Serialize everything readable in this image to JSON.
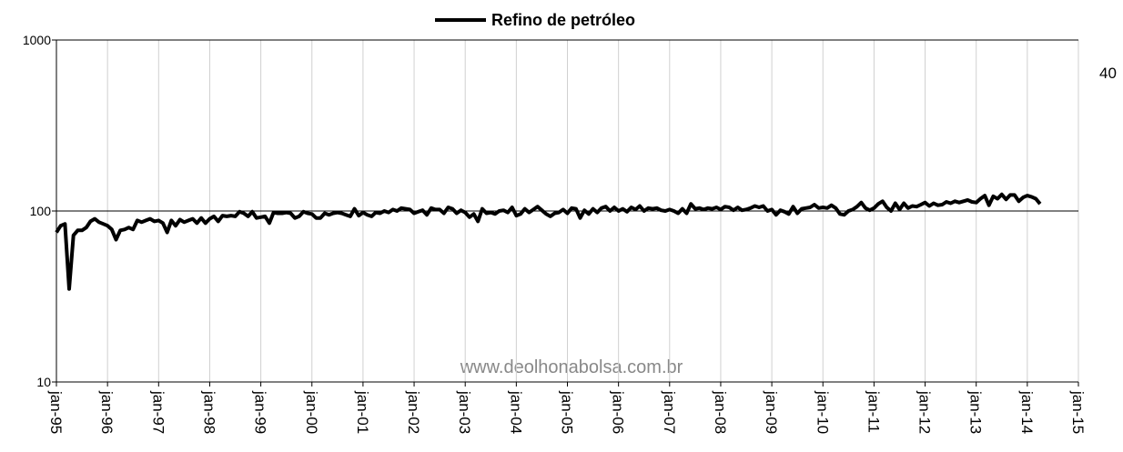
{
  "chart_data": {
    "type": "line",
    "title": "Refino de petróleo",
    "annotations": [
      "40",
      "www.deolhonabolsa.com.br"
    ],
    "log_scale": true,
    "grid": true,
    "xlim": [
      "1995-01",
      "2015-01"
    ],
    "xticks": [
      {
        "value": "1995-01",
        "label": "jan-95"
      },
      {
        "value": "1996-01",
        "label": "jan-96"
      },
      {
        "value": "1997-01",
        "label": "jan-97"
      },
      {
        "value": "1998-01",
        "label": "jan-98"
      },
      {
        "value": "1999-01",
        "label": "jan-99"
      },
      {
        "value": "2000-01",
        "label": "jan-00"
      },
      {
        "value": "2001-01",
        "label": "jan-01"
      },
      {
        "value": "2002-01",
        "label": "jan-02"
      },
      {
        "value": "2003-01",
        "label": "jan-03"
      },
      {
        "value": "2004-01",
        "label": "jan-04"
      },
      {
        "value": "2005-01",
        "label": "jan-05"
      },
      {
        "value": "2006-01",
        "label": "jan-06"
      },
      {
        "value": "2007-01",
        "label": "jan-07"
      },
      {
        "value": "2008-01",
        "label": "jan-08"
      },
      {
        "value": "2009-01",
        "label": "jan-09"
      },
      {
        "value": "2010-01",
        "label": "jan-10"
      },
      {
        "value": "2011-01",
        "label": "jan-11"
      },
      {
        "value": "2012-01",
        "label": "jan-12"
      },
      {
        "value": "2013-01",
        "label": "jan-13"
      },
      {
        "value": "2014-01",
        "label": "jan-14"
      },
      {
        "value": "2015-01",
        "label": "jan-15"
      }
    ],
    "ylim": [
      10,
      1000
    ],
    "yticks": [
      10,
      100,
      1000
    ],
    "x": [
      "1995-01",
      "1995-02",
      "1995-03",
      "1995-04",
      "1995-05",
      "1995-06",
      "1995-07",
      "1995-08",
      "1995-09",
      "1995-10",
      "1995-11",
      "1995-12",
      "1996-01",
      "1996-02",
      "1996-03",
      "1996-04",
      "1996-05",
      "1996-06",
      "1996-07",
      "1996-08",
      "1996-09",
      "1996-10",
      "1996-11",
      "1996-12",
      "1997-01",
      "1997-02",
      "1997-03",
      "1997-04",
      "1997-05",
      "1997-06",
      "1997-07",
      "1997-08",
      "1997-09",
      "1997-10",
      "1997-11",
      "1997-12",
      "1998-01",
      "1998-02",
      "1998-03",
      "1998-04",
      "1998-05",
      "1998-06",
      "1998-07",
      "1998-08",
      "1998-09",
      "1998-10",
      "1998-11",
      "1998-12",
      "1999-01",
      "1999-02",
      "1999-03",
      "1999-04",
      "1999-05",
      "1999-06",
      "1999-07",
      "1999-08",
      "1999-09",
      "1999-10",
      "1999-11",
      "1999-12",
      "2000-01",
      "2000-02",
      "2000-03",
      "2000-04",
      "2000-05",
      "2000-06",
      "2000-07",
      "2000-08",
      "2000-09",
      "2000-10",
      "2000-11",
      "2000-12",
      "2001-01",
      "2001-02",
      "2001-03",
      "2001-04",
      "2001-05",
      "2001-06",
      "2001-07",
      "2001-08",
      "2001-09",
      "2001-10",
      "2001-11",
      "2001-12",
      "2002-01",
      "2002-02",
      "2002-03",
      "2002-04",
      "2002-05",
      "2002-06",
      "2002-07",
      "2002-08",
      "2002-09",
      "2002-10",
      "2002-11",
      "2002-12",
      "2003-01",
      "2003-02",
      "2003-03",
      "2003-04",
      "2003-05",
      "2003-06",
      "2003-07",
      "2003-08",
      "2003-09",
      "2003-10",
      "2003-11",
      "2003-12",
      "2004-01",
      "2004-02",
      "2004-03",
      "2004-04",
      "2004-05",
      "2004-06",
      "2004-07",
      "2004-08",
      "2004-09",
      "2004-10",
      "2004-11",
      "2004-12",
      "2005-01",
      "2005-02",
      "2005-03",
      "2005-04",
      "2005-05",
      "2005-06",
      "2005-07",
      "2005-08",
      "2005-09",
      "2005-10",
      "2005-11",
      "2005-12",
      "2006-01",
      "2006-02",
      "2006-03",
      "2006-04",
      "2006-05",
      "2006-06",
      "2006-07",
      "2006-08",
      "2006-09",
      "2006-10",
      "2006-11",
      "2006-12",
      "2007-01",
      "2007-02",
      "2007-03",
      "2007-04",
      "2007-05",
      "2007-06",
      "2007-07",
      "2007-08",
      "2007-09",
      "2007-10",
      "2007-11",
      "2007-12",
      "2008-01",
      "2008-02",
      "2008-03",
      "2008-04",
      "2008-05",
      "2008-06",
      "2008-07",
      "2008-08",
      "2008-09",
      "2008-10",
      "2008-11",
      "2008-12",
      "2009-01",
      "2009-02",
      "2009-03",
      "2009-04",
      "2009-05",
      "2009-06",
      "2009-07",
      "2009-08",
      "2009-09",
      "2009-10",
      "2009-11",
      "2009-12",
      "2010-01",
      "2010-02",
      "2010-03",
      "2010-04",
      "2010-05",
      "2010-06",
      "2010-07",
      "2010-08",
      "2010-09",
      "2010-10",
      "2010-11",
      "2010-12",
      "2011-01",
      "2011-02",
      "2011-03",
      "2011-04",
      "2011-05",
      "2011-06",
      "2011-07",
      "2011-08",
      "2011-09",
      "2011-10",
      "2011-11",
      "2011-12",
      "2012-01",
      "2012-02",
      "2012-03",
      "2012-04",
      "2012-05",
      "2012-06",
      "2012-07",
      "2012-08",
      "2012-09",
      "2012-10",
      "2012-11",
      "2012-12",
      "2013-01",
      "2013-02",
      "2013-03",
      "2013-04",
      "2013-05",
      "2013-06",
      "2013-07",
      "2013-08",
      "2013-09",
      "2013-10",
      "2013-11",
      "2013-12",
      "2014-01",
      "2014-02",
      "2014-03",
      "2014-04"
    ],
    "series": [
      {
        "name": "Refino de petróleo",
        "color": "#000000",
        "values": [
          75,
          82,
          84,
          35,
          72,
          77,
          77,
          80,
          87,
          90,
          86,
          84,
          82,
          78,
          68,
          77,
          78,
          80,
          78,
          88,
          86,
          88,
          90,
          87,
          88,
          85,
          75,
          88,
          82,
          89,
          86,
          88,
          90,
          85,
          91,
          85,
          90,
          93,
          87,
          94,
          93,
          94,
          93,
          99,
          97,
          93,
          99,
          91,
          92,
          93,
          85,
          98,
          97,
          97,
          98,
          97,
          91,
          93,
          99,
          97,
          96,
          91,
          91,
          97,
          95,
          97,
          98,
          97,
          95,
          93,
          103,
          94,
          98,
          95,
          93,
          98,
          97,
          100,
          98,
          102,
          100,
          104,
          103,
          102,
          97,
          99,
          101,
          95,
          104,
          102,
          102,
          97,
          105,
          103,
          97,
          101,
          98,
          92,
          96,
          87,
          103,
          97,
          98,
          96,
          100,
          101,
          98,
          105,
          94,
          96,
          103,
          98,
          102,
          106,
          101,
          96,
          93,
          97,
          98,
          102,
          97,
          104,
          103,
          91,
          101,
          96,
          103,
          98,
          104,
          106,
          100,
          105,
          100,
          103,
          99,
          105,
          102,
          107,
          100,
          104,
          103,
          104,
          101,
          100,
          102,
          100,
          97,
          103,
          97,
          110,
          103,
          104,
          102,
          104,
          103,
          105,
          102,
          106,
          105,
          101,
          105,
          101,
          102,
          104,
          107,
          105,
          107,
          100,
          102,
          95,
          101,
          99,
          96,
          106,
          97,
          103,
          104,
          105,
          109,
          104,
          105,
          104,
          108,
          104,
          96,
          95,
          100,
          102,
          106,
          112,
          104,
          101,
          104,
          110,
          114,
          105,
          100,
          111,
          102,
          111,
          104,
          107,
          106,
          109,
          112,
          107,
          111,
          108,
          109,
          113,
          111,
          114,
          112,
          114,
          116,
          113,
          112,
          118,
          123,
          108,
          122,
          118,
          125,
          117,
          124,
          124,
          114,
          120,
          123,
          121,
          118,
          110
        ]
      }
    ]
  }
}
